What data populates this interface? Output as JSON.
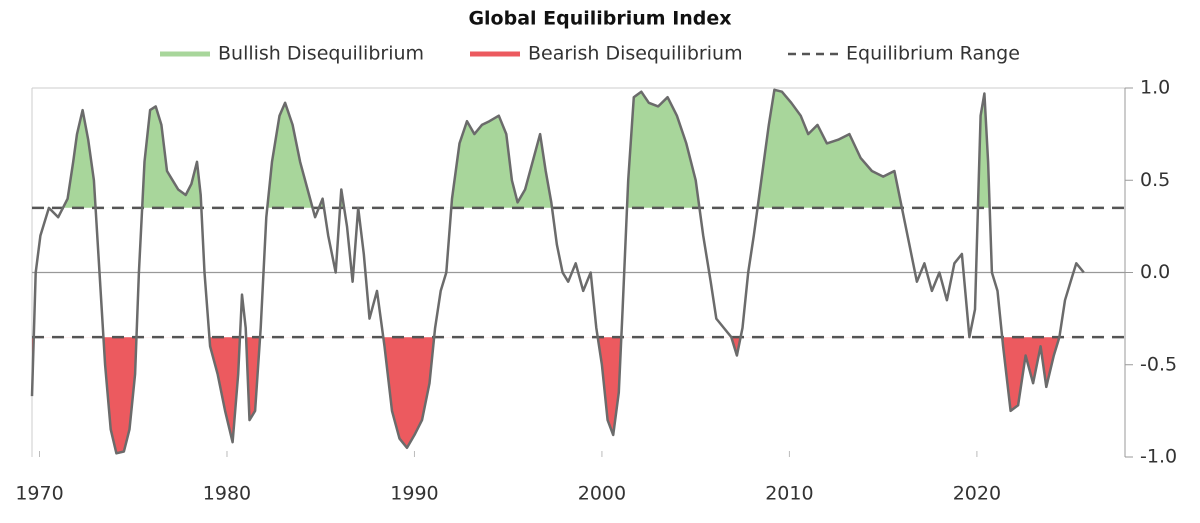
{
  "chart_data": {
    "type": "line",
    "title": "Global Equilibrium Index",
    "line_color": "#6b6b6b",
    "bullish": {
      "name": "Bullish Disequilibrium",
      "color": "#a8d69b"
    },
    "bearish": {
      "name": "Bearish Disequilibrium",
      "color": "#ec5a5f"
    },
    "equilibrium": {
      "name": "Equilibrium Range",
      "values": [
        0.35,
        -0.35
      ],
      "color": "#555555"
    },
    "xlim": [
      1969.6,
      2027.9
    ],
    "xticks": [
      1970,
      1980,
      1990,
      2000,
      2010,
      2020
    ],
    "ylim": [
      -1,
      1
    ],
    "yticks": [
      {
        "value": 1,
        "label": "1.0"
      },
      0.5,
      {
        "value": 0,
        "label": "0.0"
      },
      -0.5,
      {
        "value": -1,
        "label": "-1.0"
      }
    ],
    "x": [
      1969.6,
      1969.8,
      1970.05,
      1970.5,
      1971,
      1971.5,
      1971.8,
      1972,
      1972.3,
      1972.6,
      1972.9,
      1973.2,
      1973.5,
      1973.8,
      1974.1,
      1974.5,
      1974.8,
      1975.1,
      1975.3,
      1975.6,
      1975.9,
      1976.2,
      1976.5,
      1976.8,
      1977.1,
      1977.4,
      1977.8,
      1978.1,
      1978.4,
      1978.6,
      1978.8,
      1979.1,
      1979.5,
      1979.9,
      1980.3,
      1980.6,
      1980.8,
      1981,
      1981.2,
      1981.5,
      1981.8,
      1982.1,
      1982.4,
      1982.8,
      1983.1,
      1983.5,
      1983.9,
      1984.3,
      1984.7,
      1985.1,
      1985.4,
      1985.8,
      1986.1,
      1986.4,
      1986.7,
      1987,
      1987.3,
      1987.6,
      1988,
      1988.4,
      1988.8,
      1989.2,
      1989.6,
      1990,
      1990.4,
      1990.8,
      1991.1,
      1991.4,
      1991.7,
      1992,
      1992.4,
      1992.8,
      1993.2,
      1993.6,
      1994,
      1994.5,
      1994.9,
      1995.2,
      1995.5,
      1995.9,
      1996.3,
      1996.7,
      1997,
      1997.3,
      1997.6,
      1997.9,
      1998.2,
      1998.6,
      1999,
      1999.4,
      1999.7,
      2000,
      2000.3,
      2000.6,
      2000.9,
      2001.1,
      2001.4,
      2001.7,
      2002.1,
      2002.5,
      2003,
      2003.5,
      2004,
      2004.5,
      2005,
      2005.4,
      2005.8,
      2006.1,
      2006.5,
      2006.9,
      2007.2,
      2007.5,
      2007.8,
      2008.1,
      2008.5,
      2008.9,
      2009.2,
      2009.6,
      2010.1,
      2010.6,
      2011,
      2011.5,
      2012,
      2012.6,
      2013.2,
      2013.8,
      2014.4,
      2015,
      2015.6,
      2016,
      2016.4,
      2016.8,
      2017.2,
      2017.6,
      2018,
      2018.4,
      2018.8,
      2019.2,
      2019.6,
      2019.9,
      2020.2,
      2020.4,
      2020.6,
      2020.8,
      2021.1,
      2021.4,
      2021.8,
      2022.2,
      2022.6,
      2023,
      2023.4,
      2023.7,
      2024.1,
      2024.4,
      2024.7,
      2025,
      2025.3,
      2025.7
    ],
    "values": [
      -0.67,
      0,
      0.2,
      0.35,
      0.3,
      0.4,
      0.6,
      0.75,
      0.88,
      0.72,
      0.5,
      0,
      -0.5,
      -0.85,
      -0.98,
      -0.97,
      -0.85,
      -0.55,
      0,
      0.6,
      0.88,
      0.9,
      0.8,
      0.55,
      0.5,
      0.45,
      0.42,
      0.48,
      0.6,
      0.42,
      0,
      -0.4,
      -0.55,
      -0.75,
      -0.92,
      -0.55,
      -0.12,
      -0.3,
      -0.8,
      -0.75,
      -0.3,
      0.3,
      0.6,
      0.85,
      0.92,
      0.8,
      0.6,
      0.45,
      0.3,
      0.4,
      0.2,
      0,
      0.45,
      0.25,
      -0.05,
      0.35,
      0.1,
      -0.25,
      -0.1,
      -0.4,
      -0.75,
      -0.9,
      -0.95,
      -0.88,
      -0.8,
      -0.6,
      -0.3,
      -0.1,
      0,
      0.4,
      0.7,
      0.82,
      0.75,
      0.8,
      0.82,
      0.85,
      0.75,
      0.5,
      0.38,
      0.45,
      0.6,
      0.75,
      0.55,
      0.38,
      0.15,
      0,
      -0.05,
      0.05,
      -0.1,
      0,
      -0.3,
      -0.5,
      -0.8,
      -0.88,
      -0.65,
      -0.2,
      0.5,
      0.95,
      0.98,
      0.92,
      0.9,
      0.95,
      0.85,
      0.7,
      0.5,
      0.2,
      -0.05,
      -0.25,
      -0.3,
      -0.35,
      -0.45,
      -0.3,
      0,
      0.2,
      0.5,
      0.8,
      0.99,
      0.98,
      0.92,
      0.85,
      0.75,
      0.8,
      0.7,
      0.72,
      0.75,
      0.62,
      0.55,
      0.52,
      0.55,
      0.35,
      0.15,
      -0.05,
      0.05,
      -0.1,
      0,
      -0.15,
      0.05,
      0.1,
      -0.35,
      -0.2,
      0.85,
      0.97,
      0.6,
      0,
      -0.1,
      -0.4,
      -0.75,
      -0.72,
      -0.45,
      -0.6,
      -0.4,
      -0.62,
      -0.45,
      -0.35,
      -0.15,
      -0.05,
      0.05,
      0
    ]
  }
}
